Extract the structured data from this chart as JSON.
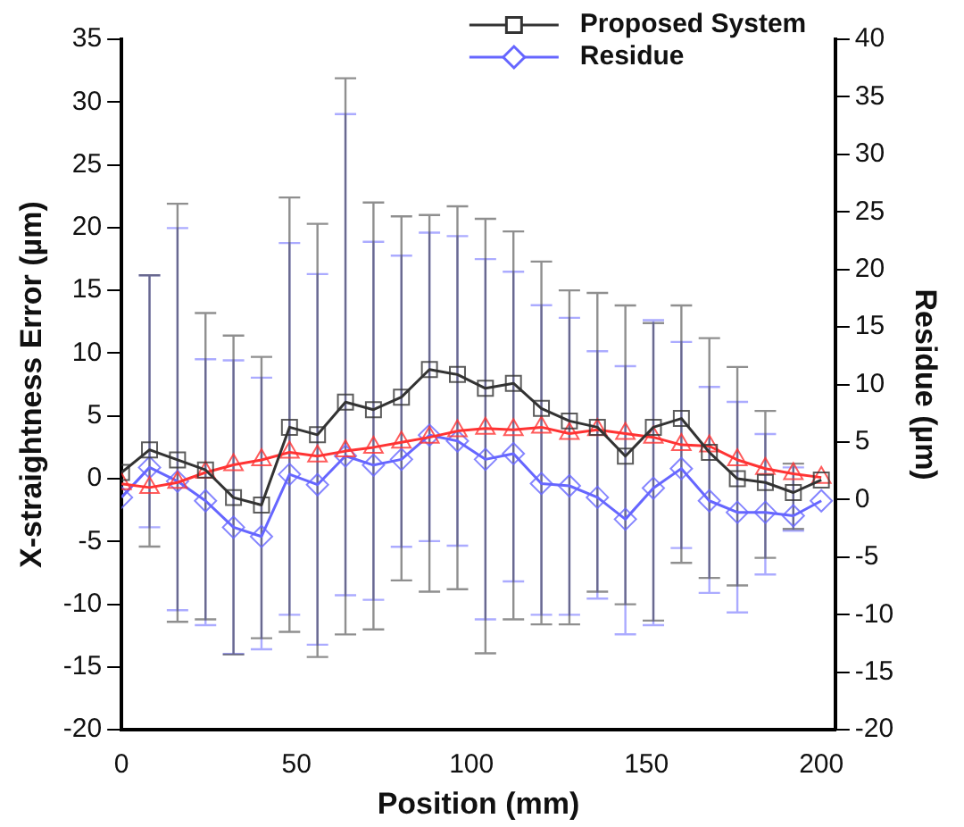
{
  "chart_data": {
    "type": "line",
    "xlabel": "Position (mm)",
    "ylabel": "X-straightness Error (µm)",
    "y2label": "Residue (µm)",
    "x": [
      0,
      8,
      16,
      24,
      32,
      40,
      48,
      56,
      64,
      72,
      80,
      88,
      96,
      104,
      112,
      120,
      128,
      136,
      144,
      152,
      160,
      168,
      176,
      184,
      192,
      200
    ],
    "xlim": [
      0,
      204
    ],
    "xticks": [
      0,
      50,
      100,
      150,
      200
    ],
    "ylim": [
      -20,
      35
    ],
    "yticks": [
      -20,
      -15,
      -10,
      -5,
      0,
      5,
      10,
      15,
      20,
      25,
      30,
      35
    ],
    "y2lim": [
      -20,
      40
    ],
    "y2ticks": [
      -20,
      -15,
      -10,
      -5,
      0,
      5,
      10,
      15,
      20,
      25,
      30,
      35,
      40
    ],
    "legend": "top right",
    "series": [
      {
        "name": "Proposed System",
        "color": "#333333",
        "marker": "square",
        "values": [
          0.5,
          2.3,
          1.5,
          0.7,
          -1.5,
          -2.1,
          4.1,
          3.5,
          6.1,
          5.5,
          6.5,
          8.7,
          8.3,
          7.2,
          7.6,
          5.6,
          4.6,
          4.1,
          1.8,
          4.1,
          4.8,
          2.1,
          0.0,
          -0.3,
          -1.1,
          -0.1
        ],
        "errors": [
          null,
          [
            -5.4,
            16.2
          ],
          [
            -11.4,
            21.9
          ],
          [
            -11.2,
            13.2
          ],
          [
            -14.0,
            11.4
          ],
          [
            -12.7,
            9.7
          ],
          [
            -12.2,
            22.4
          ],
          [
            -14.2,
            20.3
          ],
          [
            -12.4,
            31.9
          ],
          [
            -12.0,
            22.0
          ],
          [
            -8.1,
            20.9
          ],
          [
            -9.0,
            21.0
          ],
          [
            -8.8,
            21.7
          ],
          [
            -13.9,
            20.7
          ],
          [
            -11.2,
            19.7
          ],
          [
            -11.6,
            17.3
          ],
          [
            -11.6,
            15.0
          ],
          [
            -9.0,
            14.8
          ],
          [
            -10.0,
            13.8
          ],
          [
            -11.3,
            12.4
          ],
          [
            -6.7,
            13.8
          ],
          [
            -7.9,
            11.2
          ],
          [
            -8.5,
            8.9
          ],
          [
            -6.3,
            5.4
          ],
          [
            -4.0,
            1.2
          ],
          null
        ]
      },
      {
        "color": "#ff3333",
        "marker": "triangle",
        "values": [
          -0.4,
          -0.7,
          -0.3,
          0.5,
          1.1,
          1.5,
          2.1,
          1.8,
          2.2,
          2.5,
          2.9,
          3.3,
          3.8,
          4.0,
          3.9,
          4.1,
          3.6,
          3.9,
          3.6,
          3.3,
          2.7,
          2.6,
          1.5,
          0.8,
          0.4,
          0.1
        ]
      },
      {
        "name": "Residue",
        "color": "#6666ff",
        "marker": "diamond",
        "axis": "y2",
        "values": [
          0.2,
          2.8,
          1.6,
          -0.1,
          -2.4,
          -3.2,
          2.2,
          1.3,
          3.8,
          3.0,
          3.5,
          5.6,
          5.1,
          3.5,
          4.0,
          1.4,
          1.2,
          0.2,
          -1.7,
          1.0,
          2.7,
          -0.1,
          -1.1,
          -1.1,
          -1.4,
          -0.1
        ],
        "errors": [
          null,
          [
            -2.4,
            19.5
          ],
          [
            -9.6,
            23.6
          ],
          [
            -10.9,
            12.2
          ],
          [
            -13.4,
            12.1
          ],
          [
            -13.0,
            10.6
          ],
          [
            -10.0,
            22.3
          ],
          [
            -12.6,
            19.6
          ],
          [
            -8.3,
            33.5
          ],
          [
            -8.7,
            22.4
          ],
          [
            -4.1,
            21.2
          ],
          [
            -3.6,
            23.2
          ],
          [
            -4.0,
            22.9
          ],
          [
            -10.4,
            20.9
          ],
          [
            -7.1,
            19.8
          ],
          [
            -10.0,
            16.9
          ],
          [
            -10.0,
            15.8
          ],
          [
            -8.6,
            12.9
          ],
          [
            -11.7,
            11.6
          ],
          [
            -10.9,
            15.6
          ],
          [
            -4.2,
            13.7
          ],
          [
            -8.1,
            9.8
          ],
          [
            -9.8,
            8.5
          ],
          [
            -6.5,
            5.7
          ],
          [
            -2.7,
            2.8
          ],
          null
        ]
      }
    ]
  }
}
